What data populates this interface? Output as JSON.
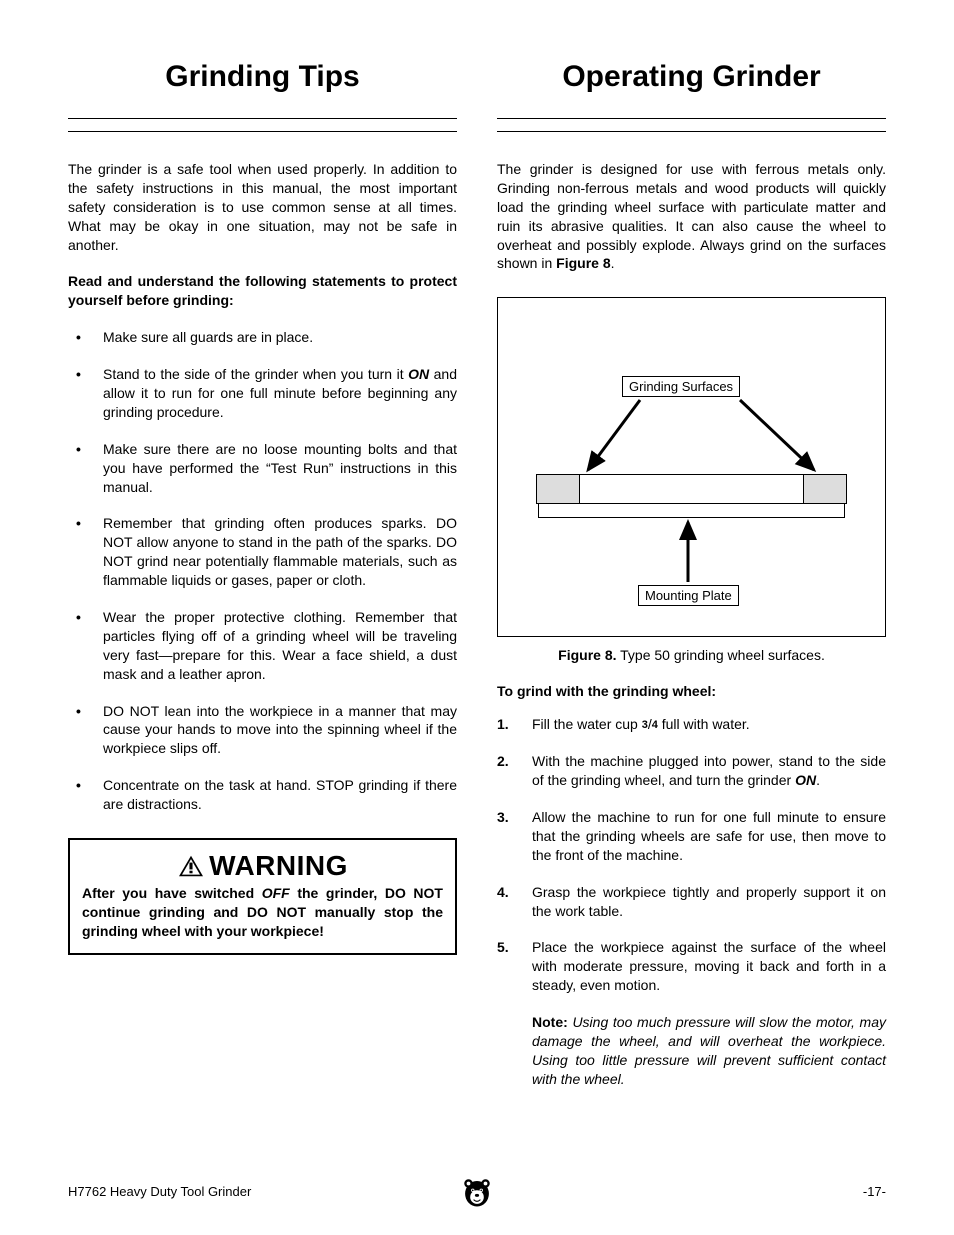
{
  "page": {
    "footer_left": "H7762 Heavy Duty Tool Grinder",
    "footer_right": "-17-"
  },
  "left": {
    "title": "Grinding Tips",
    "intro": "The grinder is a safe tool when used properly. In addition to the safety instructions in this manual, the most important safety consideration is to use common sense at all times. What may be okay in one situation, may not be safe in another.",
    "read_understand": "Read and understand the following statements to protect yourself before grinding:",
    "bullets": [
      "Make sure all guards are in place.",
      "Stand to the side of the grinder when you turn it <span class=\"em-on\">ON</span> and allow it to run for one full minute before beginning any grinding procedure.",
      "Make sure there are no loose mounting bolts and that you have performed the “Test Run” instructions in this manual.",
      "Remember that grinding often produces sparks. DO NOT allow anyone to stand in the path of the sparks. DO NOT grind near potentially flammable materials, such as flammable liquids or gases, paper or cloth.",
      "Wear the proper protective clothing. Remember that particles flying off of a grinding wheel will be traveling very fast—prepare for this. Wear a face shield, a dust mask and a leather apron.",
      "DO NOT lean into the workpiece in a manner that may cause your hands to move into the spinning wheel if the workpiece slips off.",
      "Concentrate on the task at hand. STOP grinding if there are distractions."
    ],
    "warning_label": "WARNING",
    "warning_body": "After you have switched <span class=\"em-off\">OFF</span> the grinder, DO NOT continue grinding and DO NOT manually stop the grinding wheel with your workpiece!"
  },
  "right": {
    "title": "Operating Grinder",
    "intro": "The grinder is designed for use with ferrous metals only. Grinding non-ferrous metals and wood products will quickly load the grinding wheel surface with particulate matter and ruin its abrasive qualities. It can also cause the wheel to overheat and possibly explode. Always grind on the surfaces shown in <span class=\"fig8\">Figure 8</span>.",
    "figure": {
      "label_top": "Grinding Surfaces",
      "label_bottom": "Mounting Plate",
      "caption_label": "Figure 8.",
      "caption_text": " Type 50 grinding wheel surfaces."
    },
    "sub_heading": "To grind with the grinding wheel:",
    "steps": [
      "Fill the water cup <span class=\"fraction\">3</span>/<span class=\"fraction\">4</span> full with water.",
      "With the machine plugged into power, stand to the side of the grinding wheel, and turn the grinder <span class=\"em-on\">ON</span>.",
      "Allow the machine to run for one full minute to ensure that the grinding wheels are safe for use, then move to the front of the machine.",
      "Grasp the workpiece tightly and properly support it on the work table.",
      "Place the workpiece against the surface of the wheel with moderate pressure, moving it back and forth in a steady, even motion."
    ],
    "note_label": "Note:",
    "note_text": " Using too much pressure will slow the motor, may damage the wheel, and will overheat the workpiece. Using too little pressure will prevent sufficient contact with the wheel."
  },
  "colors": {
    "text": "#000000",
    "bg": "#ffffff",
    "grind_fill": "#dddddd"
  }
}
